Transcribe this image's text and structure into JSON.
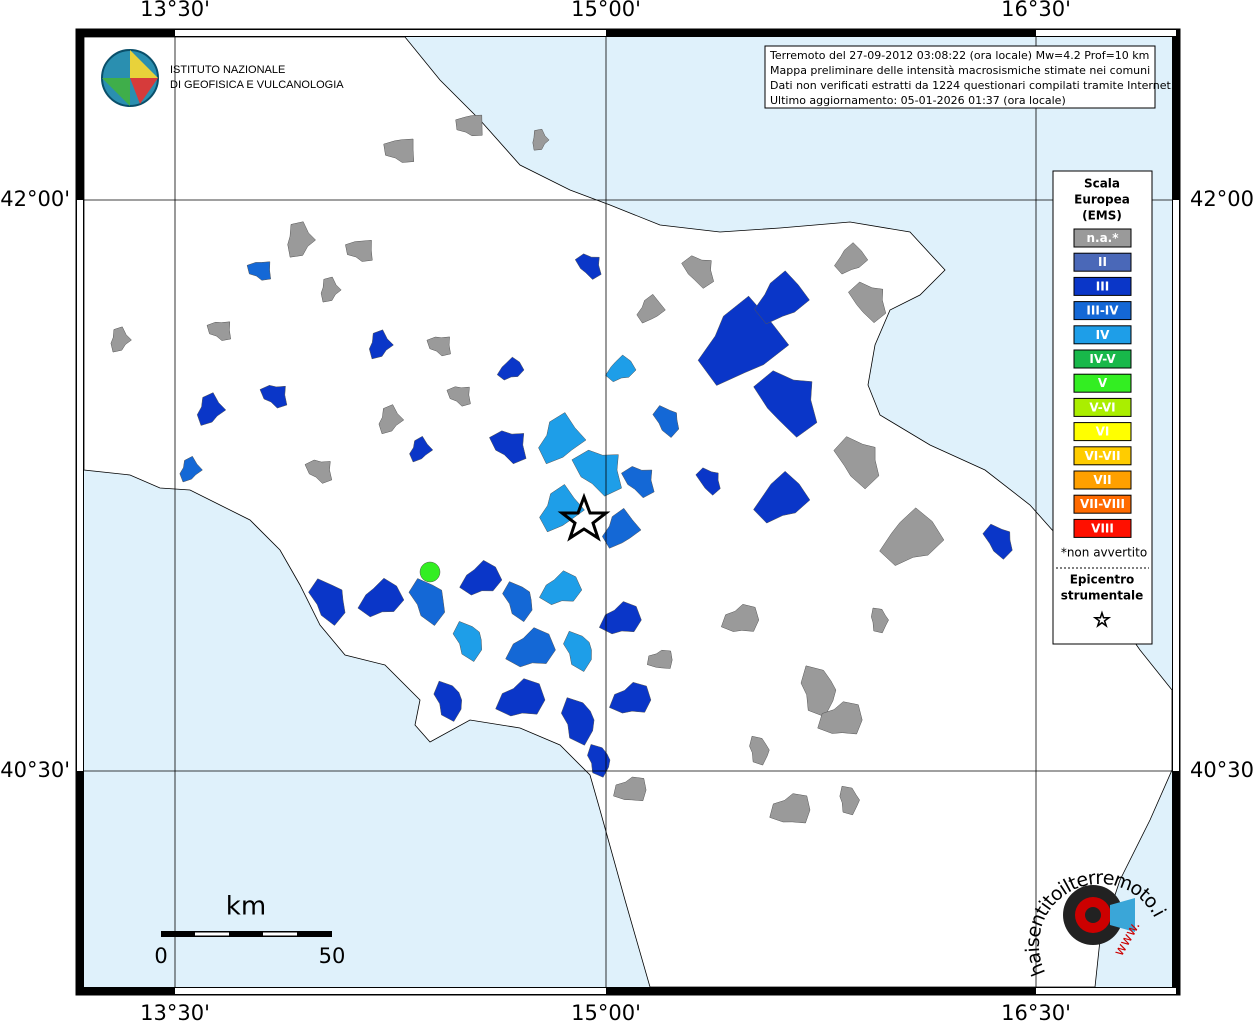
{
  "info_box": {
    "lines": [
      "Terremoto del 27-09-2012 03:08:22 (ora locale) Mw=4.2 Prof=10 km",
      "Mappa preliminare delle intensità macrosismiche stimate nei comuni",
      "Dati non verificati estratti da 1224 questionari compilati tramite Internet.",
      "Ultimo aggiornamento: 05-01-2026 01:37 (ora locale)"
    ]
  },
  "logo": {
    "line1": "ISTITUTO NAZIONALE",
    "line2": "DI GEOFISICA E VULCANOLOGIA"
  },
  "axes": {
    "longitudes": [
      "13°30'",
      "15°00'",
      "16°30'"
    ],
    "latitudes": [
      "42°00'",
      "40°30'"
    ]
  },
  "legend": {
    "title_lines": [
      "Scala",
      "Europea",
      "(EMS)"
    ],
    "items": [
      {
        "label": "n.a.*",
        "color": "#9a9a9a"
      },
      {
        "label": "II",
        "color": "#4a68b8"
      },
      {
        "label": "III",
        "color": "#0a36c8"
      },
      {
        "label": "III-IV",
        "color": "#1468d6"
      },
      {
        "label": "IV",
        "color": "#1e9ee8"
      },
      {
        "label": "IV-V",
        "color": "#18b84a"
      },
      {
        "label": "V",
        "color": "#33ee22"
      },
      {
        "label": "V-VI",
        "color": "#aaee00"
      },
      {
        "label": "VI",
        "color": "#ffff00"
      },
      {
        "label": "VI-VII",
        "color": "#ffcc00"
      },
      {
        "label": "VII",
        "color": "#ffa000"
      },
      {
        "label": "VII-VIII",
        "color": "#ff6a00"
      },
      {
        "label": "VIII",
        "color": "#ff1000"
      }
    ],
    "note": "*non avvertito",
    "epicenter_lines": [
      "Epicentro",
      "strumentale"
    ]
  },
  "scale_bar": {
    "unit": "km",
    "labels": [
      "0",
      "50"
    ]
  },
  "watermark": {
    "site": "haisentitoilterremoto.it",
    "www": "www."
  }
}
